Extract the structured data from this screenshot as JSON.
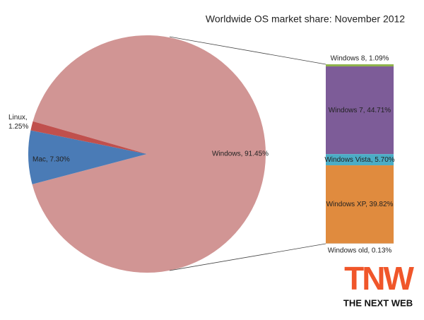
{
  "chart_data": [
    {
      "type": "pie",
      "title": "Worldwide OS market share: November 2012",
      "values": [
        91.45,
        7.3,
        1.25
      ],
      "value_labels": [
        "Windows, 91.45%",
        "Mac, 7.30%",
        "Linux, 1.25%"
      ],
      "colors": [
        "#d19594",
        "#4a7bb6",
        "#c0504d"
      ]
    },
    {
      "type": "stacked-bar",
      "values": [
        1.09,
        44.71,
        5.7,
        39.82,
        0.13
      ],
      "value_labels": [
        "Windows 8, 1.09%",
        "Windows 7, 44.71%",
        "Windows Vista, 5.70%",
        "Windows XP, 39.82%",
        "Windows old, 0.13%"
      ],
      "colors": [
        "#8fb34c",
        "#7d5c98",
        "#4badc6",
        "#e08b3e",
        "#cccccc"
      ]
    }
  ],
  "logo": {
    "mark": "TNW",
    "text": "THE NEXT WEB"
  }
}
